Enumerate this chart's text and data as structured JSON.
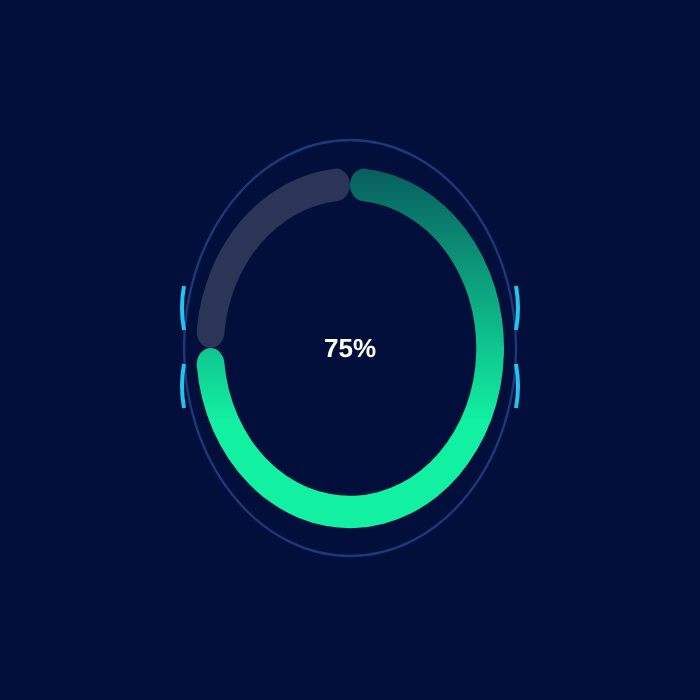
{
  "chart_data": {
    "type": "donut",
    "categories": [
      null,
      null
    ],
    "values": [
      75,
      25
    ],
    "colors": [
      "#12f0a2",
      "#2a3558"
    ],
    "value_labels": [
      "75%",
      null
    ]
  }
}
